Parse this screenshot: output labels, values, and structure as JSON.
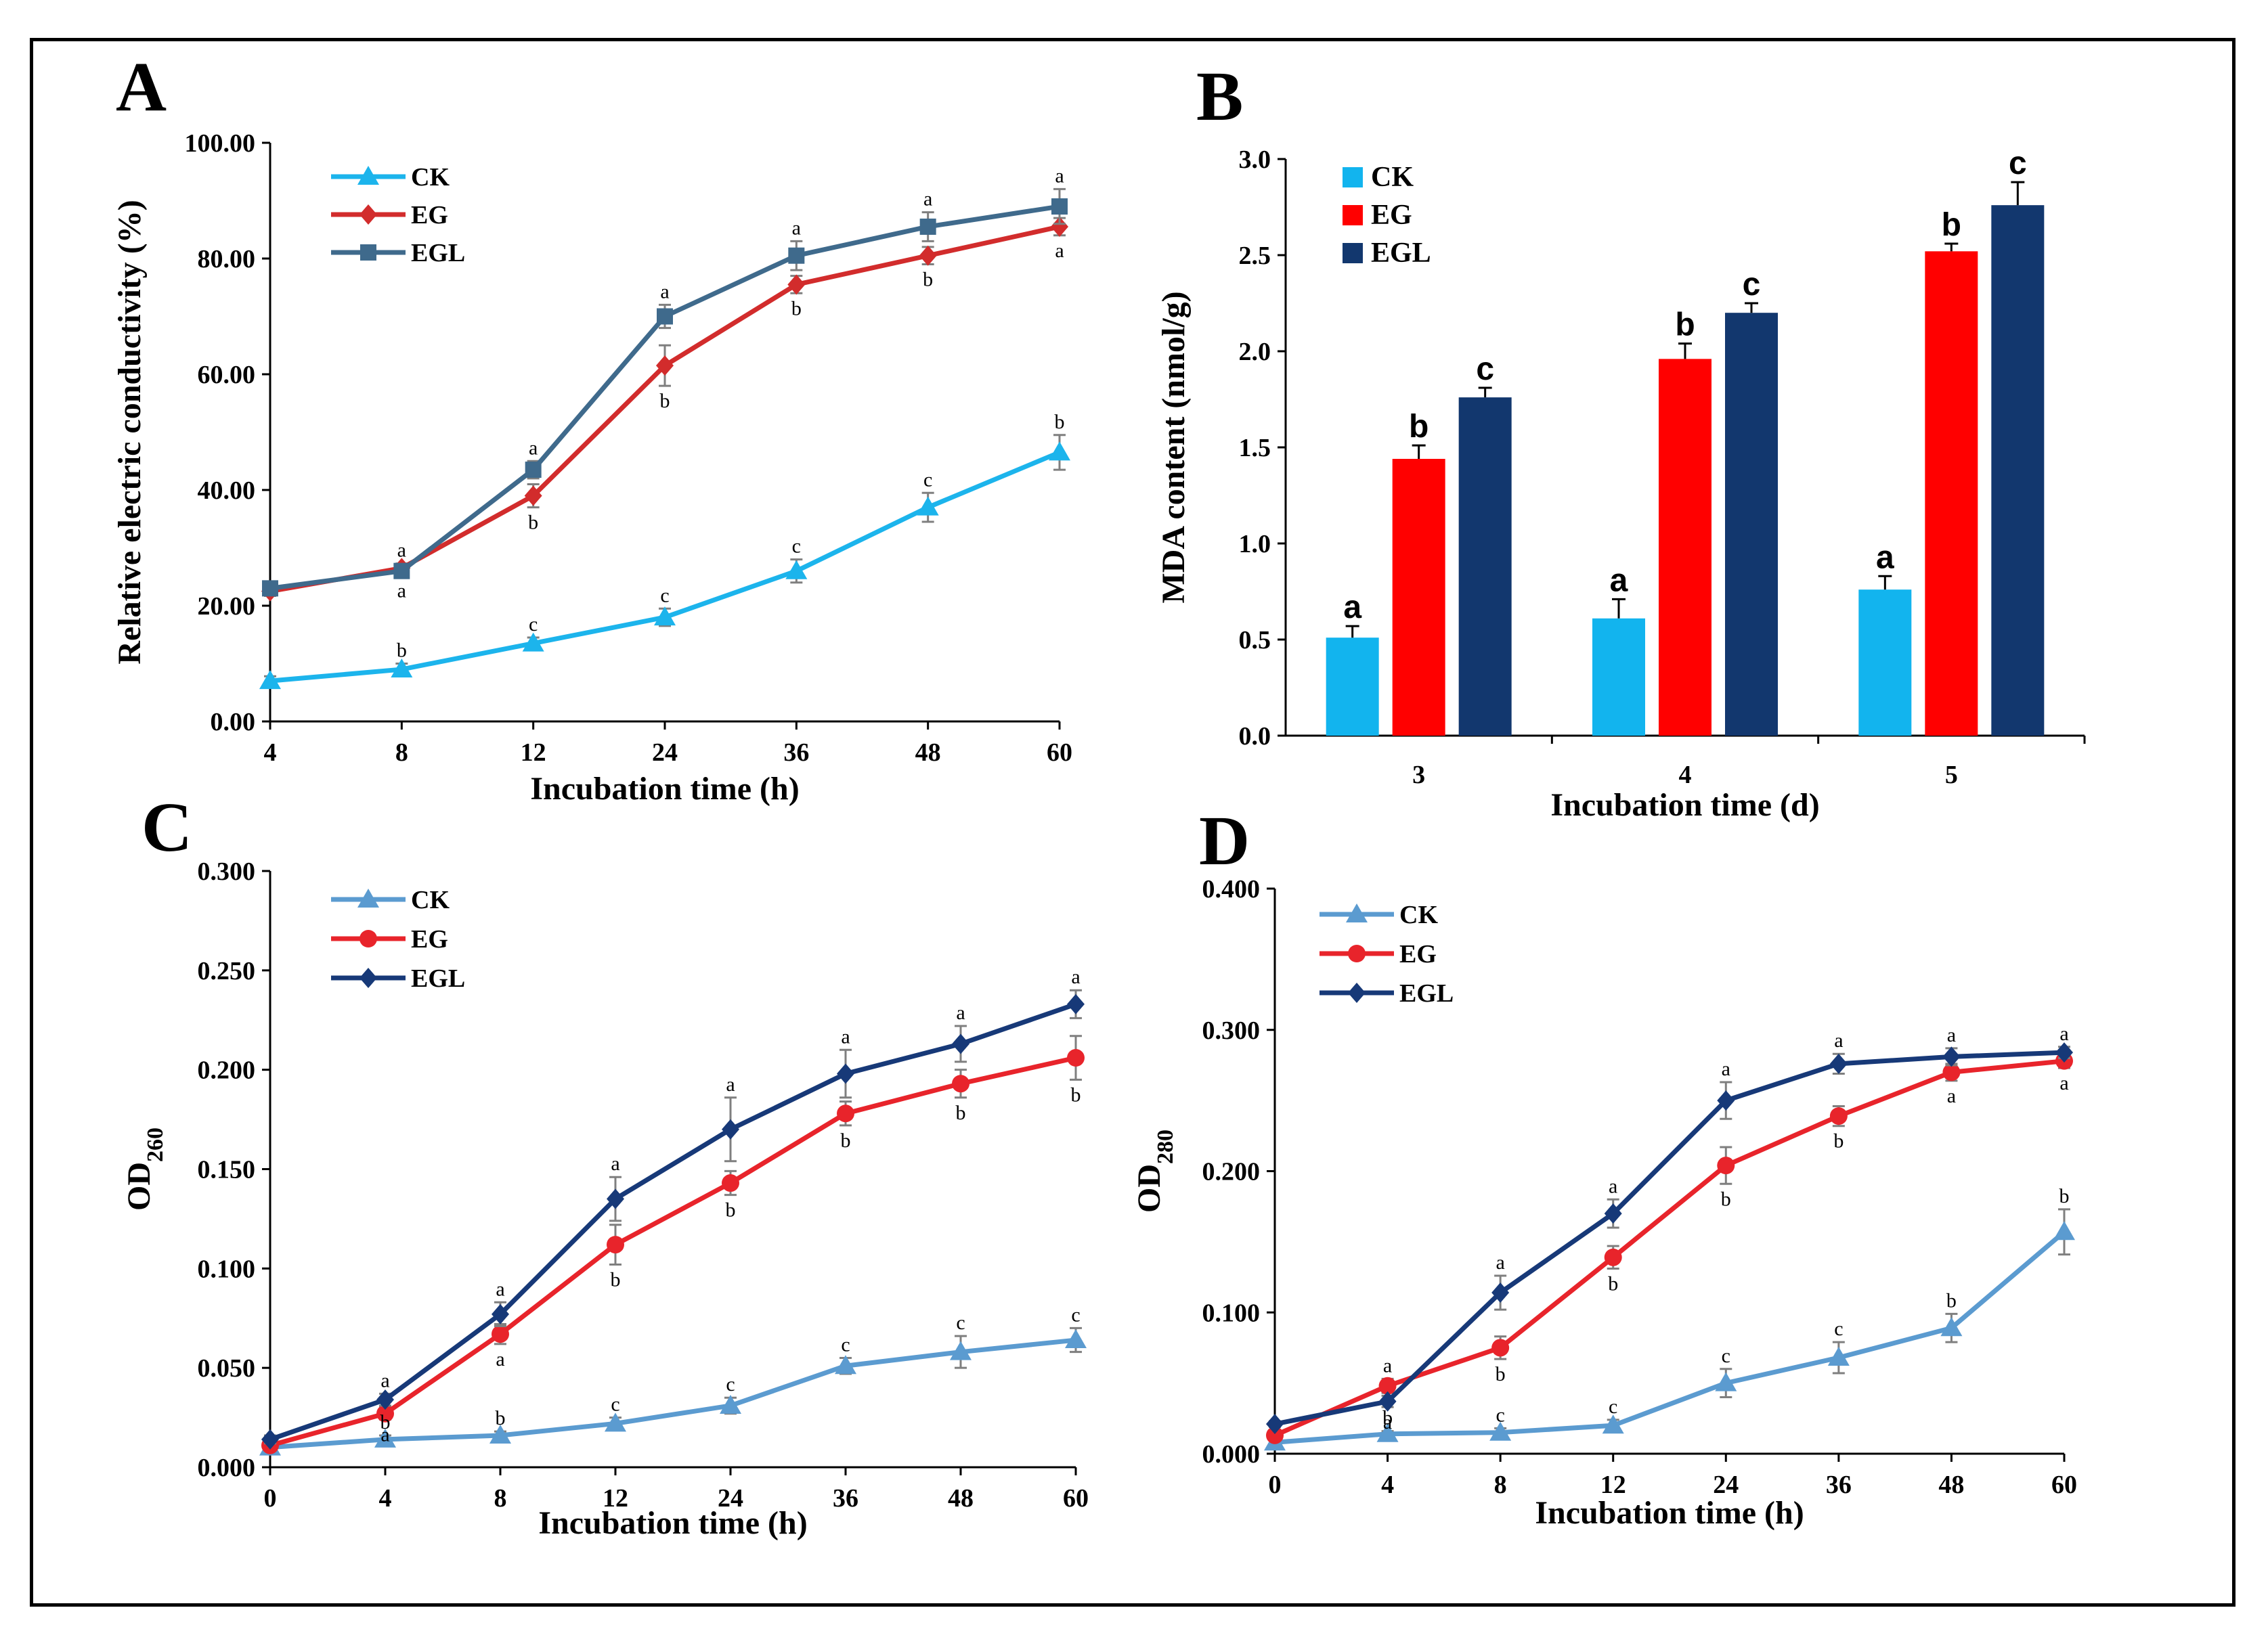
{
  "colors": {
    "ck_line": "#1cb4ec",
    "eg_line": "#d22c2c",
    "egl_line": "#3f6a8c",
    "ck_bar": "#12b4ee",
    "eg_bar": "#ff0000",
    "egl_bar": "#12376e",
    "ck_c": "#5b9bd0",
    "eg_c": "#e8242b",
    "egl_c": "#173978"
  },
  "chart_data": [
    {
      "panel": "A",
      "type": "line",
      "xlabel": "Incubation time (h)",
      "ylabel": "Relative electric conductivity (%)",
      "categories": [
        "4",
        "8",
        "12",
        "24",
        "36",
        "48",
        "60"
      ],
      "ylim": [
        0,
        100
      ],
      "yticks": [
        "0.00",
        "20.00",
        "40.00",
        "60.00",
        "80.00",
        "100.00"
      ],
      "legend_position": "top-left",
      "series": [
        {
          "name": "CK",
          "values": [
            7,
            9,
            13.5,
            18,
            26,
            37,
            46.5
          ],
          "err": [
            0.8,
            1,
            1,
            1.5,
            2,
            2.5,
            3
          ],
          "labels": [
            "",
            "b",
            "c",
            "c",
            "c",
            "c",
            "b"
          ]
        },
        {
          "name": "EG",
          "values": [
            22.5,
            26.5,
            39,
            61.5,
            75.5,
            80.5,
            85.5
          ],
          "err": [
            0.8,
            0.8,
            2,
            3.5,
            1.5,
            1.5,
            1.5
          ],
          "labels": [
            "",
            "a",
            "b",
            "b",
            "b",
            "b",
            "a"
          ]
        },
        {
          "name": "EGL",
          "values": [
            23,
            26,
            43.5,
            70,
            80.5,
            85.5,
            89
          ],
          "err": [
            0.8,
            0.8,
            1.5,
            2,
            2.5,
            2.5,
            3
          ],
          "labels": [
            "",
            "a",
            "a",
            "a",
            "a",
            "a",
            "a"
          ]
        }
      ]
    },
    {
      "panel": "B",
      "type": "bar",
      "xlabel": "Incubation time (d)",
      "ylabel": "MDA content (nmol/g)",
      "categories": [
        "3",
        "4",
        "5"
      ],
      "ylim": [
        0,
        3
      ],
      "yticks": [
        "0.0",
        "0.5",
        "1.0",
        "1.5",
        "2.0",
        "2.5",
        "3.0"
      ],
      "legend_position": "top-left",
      "series": [
        {
          "name": "CK",
          "values": [
            0.51,
            0.61,
            0.76
          ],
          "err": [
            0.06,
            0.1,
            0.07
          ],
          "labels": [
            "a",
            "a",
            "a"
          ]
        },
        {
          "name": "EG",
          "values": [
            1.44,
            1.96,
            2.52
          ],
          "err": [
            0.07,
            0.08,
            0.04
          ],
          "labels": [
            "b",
            "b",
            "b"
          ]
        },
        {
          "name": "EGL",
          "values": [
            1.76,
            2.2,
            2.76
          ],
          "err": [
            0.05,
            0.05,
            0.12
          ],
          "labels": [
            "c",
            "c",
            "c"
          ]
        }
      ]
    },
    {
      "panel": "C",
      "type": "line",
      "xlabel": "Incubation time (h)",
      "ylabel": "OD",
      "ylabel_sub": "260",
      "categories": [
        "0",
        "4",
        "8",
        "12",
        "24",
        "36",
        "48",
        "60"
      ],
      "ylim": [
        0,
        0.3
      ],
      "yticks": [
        "0.000",
        "0.050",
        "0.100",
        "0.150",
        "0.200",
        "0.250",
        "0.300"
      ],
      "legend_position": "top-left",
      "series": [
        {
          "name": "CK",
          "values": [
            0.01,
            0.014,
            0.016,
            0.022,
            0.031,
            0.051,
            0.058,
            0.064
          ],
          "err": [
            0.002,
            0.002,
            0.002,
            0.003,
            0.004,
            0.004,
            0.008,
            0.006
          ],
          "labels": [
            "",
            "b",
            "b",
            "c",
            "c",
            "c",
            "c",
            "c"
          ]
        },
        {
          "name": "EG",
          "values": [
            0.011,
            0.027,
            0.067,
            0.112,
            0.143,
            0.178,
            0.193,
            0.206
          ],
          "err": [
            0.002,
            0.003,
            0.005,
            0.01,
            0.006,
            0.006,
            0.007,
            0.011
          ],
          "labels": [
            "",
            "a",
            "a",
            "b",
            "b",
            "b",
            "b",
            "b"
          ]
        },
        {
          "name": "EGL",
          "values": [
            0.014,
            0.034,
            0.077,
            0.135,
            0.17,
            0.198,
            0.213,
            0.233
          ],
          "err": [
            0.002,
            0.003,
            0.006,
            0.011,
            0.016,
            0.012,
            0.009,
            0.007
          ],
          "labels": [
            "",
            "a",
            "a",
            "a",
            "a",
            "a",
            "a",
            "a"
          ]
        }
      ]
    },
    {
      "panel": "D",
      "type": "line",
      "xlabel": "Incubation time (h)",
      "ylabel": "OD",
      "ylabel_sub": "280",
      "categories": [
        "0",
        "4",
        "8",
        "12",
        "24",
        "36",
        "48",
        "60"
      ],
      "ylim": [
        0,
        0.4
      ],
      "yticks": [
        "0.000",
        "0.100",
        "0.200",
        "0.300",
        "0.400"
      ],
      "legend_position": "top-left",
      "series": [
        {
          "name": "CK",
          "values": [
            0.008,
            0.014,
            0.015,
            0.02,
            0.05,
            0.068,
            0.089,
            0.157
          ],
          "err": [
            0.002,
            0.002,
            0.003,
            0.004,
            0.01,
            0.011,
            0.01,
            0.016
          ],
          "labels": [
            "",
            "b",
            "c",
            "c",
            "c",
            "c",
            "b",
            "b"
          ]
        },
        {
          "name": "EG",
          "values": [
            0.013,
            0.048,
            0.075,
            0.139,
            0.204,
            0.239,
            0.27,
            0.278
          ],
          "err": [
            0.002,
            0.005,
            0.008,
            0.008,
            0.013,
            0.007,
            0.006,
            0.005
          ],
          "labels": [
            "",
            "a",
            "b",
            "b",
            "b",
            "b",
            "a",
            "a"
          ]
        },
        {
          "name": "EGL",
          "values": [
            0.021,
            0.037,
            0.114,
            0.17,
            0.25,
            0.276,
            0.281,
            0.284
          ],
          "err": [
            0.002,
            0.004,
            0.012,
            0.01,
            0.013,
            0.007,
            0.006,
            0.004
          ],
          "labels": [
            "",
            "a",
            "a",
            "a",
            "a",
            "a",
            "a",
            "a"
          ]
        }
      ]
    }
  ]
}
